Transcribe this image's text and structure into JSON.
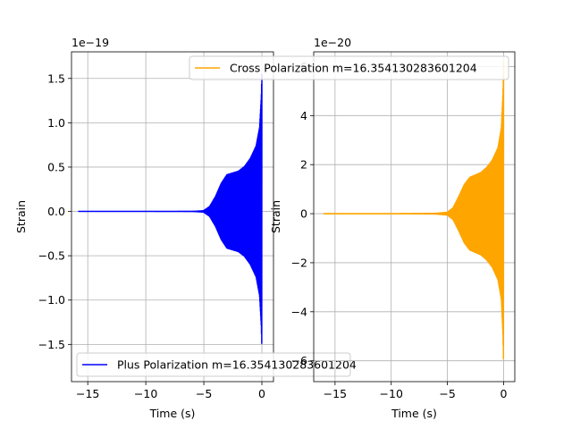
{
  "chart_data": [
    {
      "type": "line",
      "xlabel": "Time (s)",
      "ylabel": "Strain",
      "offset_text": "1e−19",
      "xlim": [
        -16.4,
        1.0
      ],
      "ylim": [
        -1.92,
        1.8
      ],
      "xticks": [
        -15,
        -10,
        -5,
        0
      ],
      "xtick_labels": [
        "−15",
        "−10",
        "−5",
        "0"
      ],
      "yticks": [
        1.5,
        1.0,
        0.5,
        0.0,
        -0.5,
        -1.0,
        -1.5
      ],
      "ytick_labels": [
        "1.5",
        "1.0",
        "0.5",
        "0.0",
        "−0.5",
        "−1.0",
        "−1.5"
      ],
      "grid": true,
      "legend_position": "lower-left",
      "series": [
        {
          "name": "Plus Polarization m=16.354130283601204",
          "color": "#0000ff",
          "t_start": -15.8,
          "t_end": 0.0,
          "envelope": {
            "t": [
              -15.8,
              -10,
              -6,
              -5,
              -4.5,
              -4,
              -3.5,
              -3,
              -2.5,
              -2,
              -1.5,
              -1,
              -0.5,
              -0.2,
              -0.05,
              0.0
            ],
            "amp": [
              0.003,
              0.003,
              0.006,
              0.015,
              0.06,
              0.17,
              0.32,
              0.42,
              0.44,
              0.46,
              0.51,
              0.6,
              0.74,
              0.95,
              1.3,
              1.55
            ]
          }
        }
      ]
    },
    {
      "type": "line",
      "xlabel": "Time (s)",
      "ylabel": "Strain",
      "offset_text": "1e−20",
      "xlim": [
        -16.9,
        1.0
      ],
      "ylim": [
        -6.85,
        6.6
      ],
      "xticks": [
        -15,
        -10,
        -5,
        0
      ],
      "xtick_labels": [
        "−15",
        "−10",
        "−5",
        "0"
      ],
      "yticks": [
        6,
        4,
        2,
        0,
        -2,
        -4,
        -6
      ],
      "ytick_labels": [
        "6",
        "4",
        "2",
        "0",
        "−2",
        "−4",
        "−6"
      ],
      "grid": true,
      "legend_position": "upper-right",
      "series": [
        {
          "name": "Cross Polarization m=16.354130283601204",
          "color": "#ffa500",
          "t_start": -16.0,
          "t_end": 0.0,
          "envelope": {
            "t": [
              -16.0,
              -10,
              -6,
              -5,
              -4.5,
              -4,
              -3.5,
              -3,
              -2.5,
              -2,
              -1.5,
              -1,
              -0.5,
              -0.2,
              -0.05,
              0.0
            ],
            "amp": [
              0.02,
              0.02,
              0.04,
              0.08,
              0.25,
              0.7,
              1.2,
              1.5,
              1.6,
              1.7,
              1.9,
              2.2,
              2.7,
              3.5,
              5.0,
              6.2
            ]
          }
        }
      ]
    }
  ]
}
